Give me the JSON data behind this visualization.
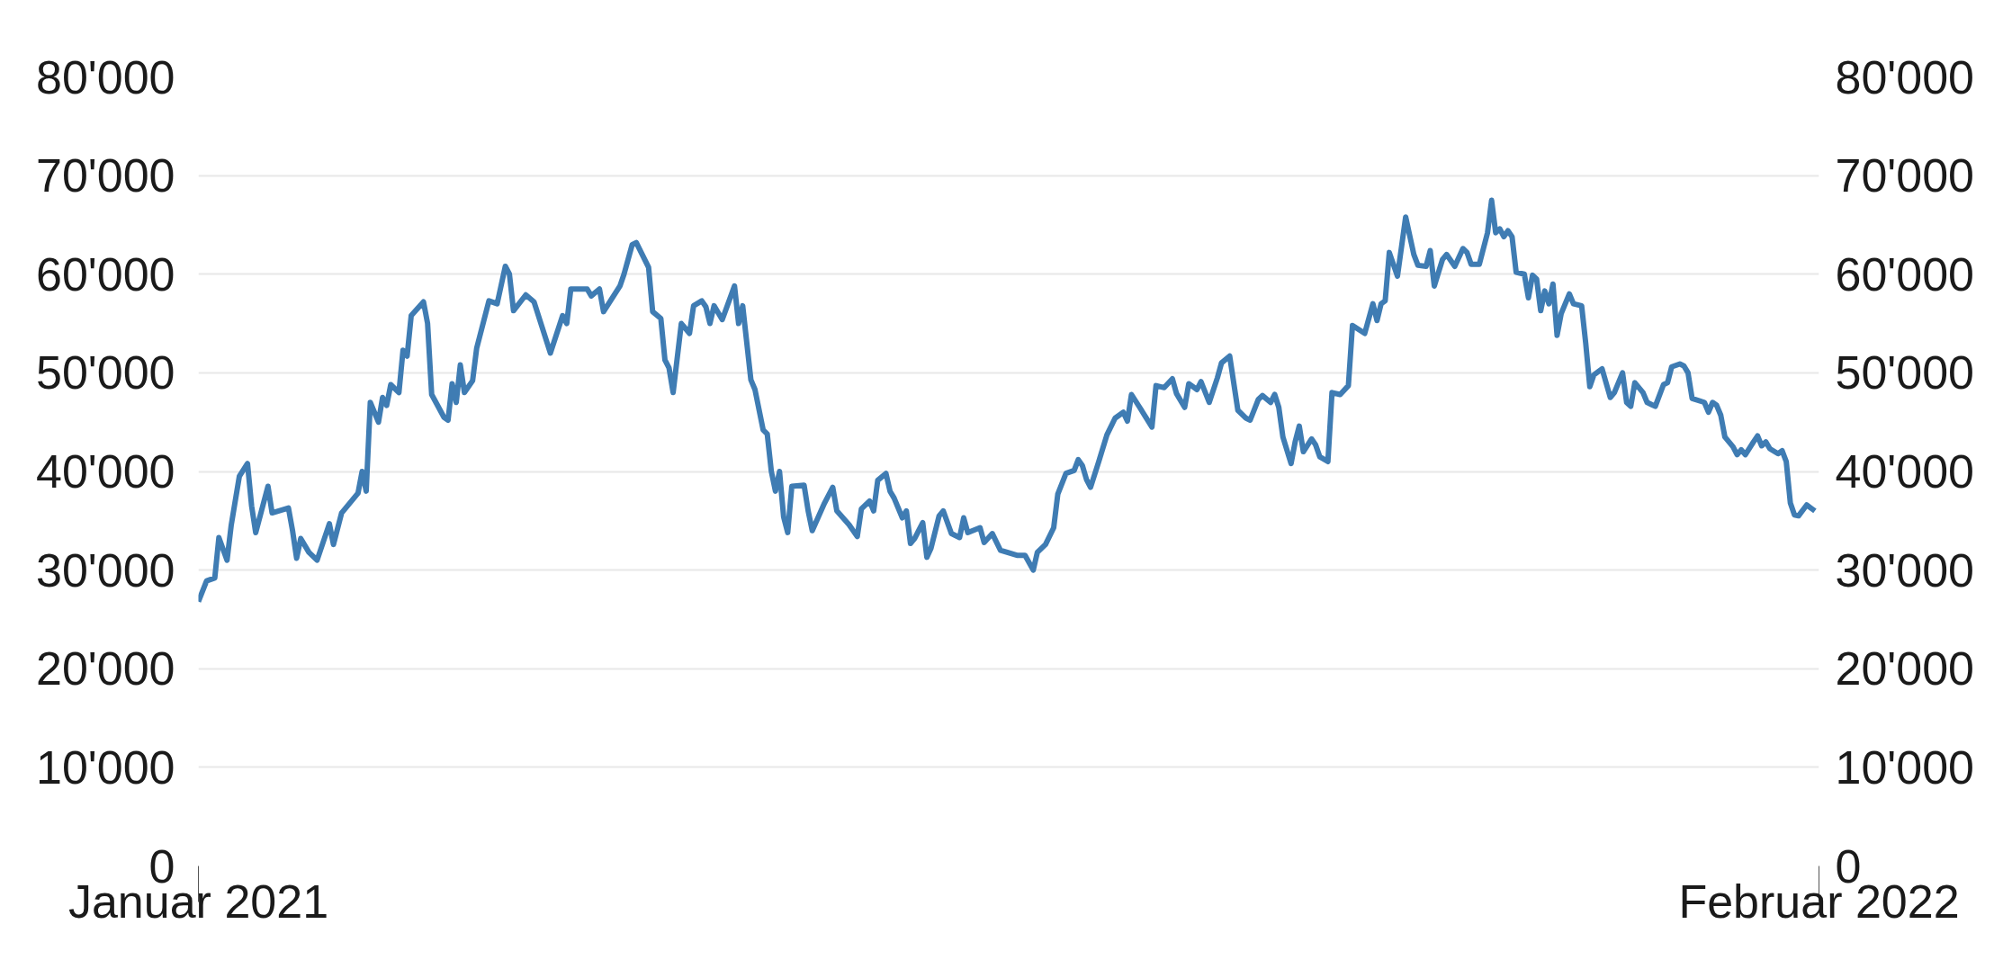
{
  "chart_data": {
    "type": "line",
    "x": [
      "2021-01-01",
      "2021-01-03",
      "2021-01-05",
      "2021-01-06",
      "2021-01-08",
      "2021-01-09",
      "2021-01-11",
      "2021-01-13",
      "2021-01-14",
      "2021-01-15",
      "2021-01-18",
      "2021-01-19",
      "2021-01-23",
      "2021-01-24",
      "2021-01-25",
      "2021-01-26",
      "2021-01-28",
      "2021-01-30",
      "2021-02-02",
      "2021-02-03",
      "2021-02-05",
      "2021-02-09",
      "2021-02-10",
      "2021-02-11",
      "2021-02-12",
      "2021-02-14",
      "2021-02-15",
      "2021-02-16",
      "2021-02-17",
      "2021-02-19",
      "2021-02-20",
      "2021-02-21",
      "2021-02-22",
      "2021-02-25",
      "2021-02-26",
      "2021-02-27",
      "2021-03-02",
      "2021-03-03",
      "2021-03-04",
      "2021-03-05",
      "2021-03-06",
      "2021-03-07",
      "2021-03-09",
      "2021-03-10",
      "2021-03-13",
      "2021-03-15",
      "2021-03-17",
      "2021-03-18",
      "2021-03-19",
      "2021-03-22",
      "2021-03-24",
      "2021-03-26",
      "2021-03-28",
      "2021-03-31",
      "2021-04-01",
      "2021-04-02",
      "2021-04-06",
      "2021-04-07",
      "2021-04-09",
      "2021-04-10",
      "2021-04-14",
      "2021-04-15",
      "2021-04-17",
      "2021-04-18",
      "2021-04-21",
      "2021-04-22",
      "2021-04-24",
      "2021-04-25",
      "2021-04-26",
      "2021-04-27",
      "2021-04-29",
      "2021-05-01",
      "2021-05-02",
      "2021-05-04",
      "2021-05-05",
      "2021-05-06",
      "2021-05-07",
      "2021-05-09",
      "2021-05-12",
      "2021-05-13",
      "2021-05-14",
      "2021-05-16",
      "2021-05-17",
      "2021-05-19",
      "2021-05-20",
      "2021-05-21",
      "2021-05-22",
      "2021-05-23",
      "2021-05-24",
      "2021-05-25",
      "2021-05-26",
      "2021-05-29",
      "2021-05-30",
      "2021-05-31",
      "2021-06-03",
      "2021-06-05",
      "2021-06-06",
      "2021-06-09",
      "2021-06-11",
      "2021-06-12",
      "2021-06-14",
      "2021-06-15",
      "2021-06-16",
      "2021-06-18",
      "2021-06-19",
      "2021-06-20",
      "2021-06-22",
      "2021-06-23",
      "2021-06-24",
      "2021-06-25",
      "2021-06-27",
      "2021-06-28",
      "2021-06-29",
      "2021-07-01",
      "2021-07-02",
      "2021-07-04",
      "2021-07-06",
      "2021-07-07",
      "2021-07-08",
      "2021-07-11",
      "2021-07-12",
      "2021-07-14",
      "2021-07-16",
      "2021-07-20",
      "2021-07-22",
      "2021-07-24",
      "2021-07-25",
      "2021-07-27",
      "2021-07-29",
      "2021-07-30",
      "2021-08-01",
      "2021-08-03",
      "2021-08-04",
      "2021-08-05",
      "2021-08-06",
      "2021-08-07",
      "2021-08-09",
      "2021-08-11",
      "2021-08-13",
      "2021-08-15",
      "2021-08-16",
      "2021-08-17",
      "2021-08-19",
      "2021-08-22",
      "2021-08-23",
      "2021-08-25",
      "2021-08-27",
      "2021-08-28",
      "2021-08-30",
      "2021-08-31",
      "2021-09-02",
      "2021-09-03",
      "2021-09-05",
      "2021-09-07",
      "2021-09-08",
      "2021-09-10",
      "2021-09-12",
      "2021-09-14",
      "2021-09-15",
      "2021-09-17",
      "2021-09-18",
      "2021-09-20",
      "2021-09-21",
      "2021-09-22",
      "2021-09-23",
      "2021-09-25",
      "2021-09-26",
      "2021-09-27",
      "2021-09-28",
      "2021-09-30",
      "2021-10-01",
      "2021-10-02",
      "2021-10-04",
      "2021-10-05",
      "2021-10-07",
      "2021-10-09",
      "2021-10-10",
      "2021-10-13",
      "2021-10-15",
      "2021-10-16",
      "2021-10-17",
      "2021-10-18",
      "2021-10-19",
      "2021-10-21",
      "2021-10-23",
      "2021-10-25",
      "2021-10-26",
      "2021-10-28",
      "2021-10-29",
      "2021-10-30",
      "2021-11-01",
      "2021-11-02",
      "2021-11-04",
      "2021-11-06",
      "2021-11-07",
      "2021-11-08",
      "2021-11-10",
      "2021-11-12",
      "2021-11-13",
      "2021-11-14",
      "2021-11-15",
      "2021-11-16",
      "2021-11-17",
      "2021-11-18",
      "2021-11-19",
      "2021-11-21",
      "2021-11-22",
      "2021-11-23",
      "2021-11-24",
      "2021-11-25",
      "2021-11-26",
      "2021-11-27",
      "2021-11-28",
      "2021-11-29",
      "2021-11-30",
      "2021-12-02",
      "2021-12-03",
      "2021-12-05",
      "2021-12-06",
      "2021-12-07",
      "2021-12-08",
      "2021-12-10",
      "2021-12-12",
      "2021-12-13",
      "2021-12-15",
      "2021-12-16",
      "2021-12-17",
      "2021-12-18",
      "2021-12-20",
      "2021-12-21",
      "2021-12-22",
      "2021-12-23",
      "2021-12-25",
      "2021-12-26",
      "2021-12-27",
      "2021-12-29",
      "2021-12-30",
      "2021-12-31",
      "2022-01-01",
      "2022-01-04",
      "2022-01-05",
      "2022-01-06",
      "2022-01-07",
      "2022-01-08",
      "2022-01-09",
      "2022-01-11",
      "2022-01-12",
      "2022-01-13",
      "2022-01-14",
      "2022-01-16",
      "2022-01-17",
      "2022-01-18",
      "2022-01-19",
      "2022-01-20",
      "2022-01-22",
      "2022-01-23",
      "2022-01-24",
      "2022-01-25",
      "2022-01-26",
      "2022-01-27",
      "2022-01-29",
      "2022-01-30",
      "2022-01-31"
    ],
    "series": [
      {
        "color": "#3f7cb3",
        "values": [
          26800,
          28900,
          29200,
          33300,
          31000,
          34500,
          39500,
          40800,
          36500,
          33800,
          38500,
          35800,
          36300,
          34000,
          31200,
          33200,
          31800,
          31000,
          34700,
          32600,
          35800,
          37800,
          40000,
          38000,
          47000,
          45000,
          47500,
          46700,
          48800,
          48000,
          52300,
          51700,
          55800,
          57200,
          55000,
          47800,
          45500,
          45200,
          48900,
          47000,
          50800,
          48000,
          49200,
          52500,
          57300,
          57000,
          60800,
          60000,
          56300,
          57900,
          57200,
          54600,
          52000,
          55800,
          55000,
          58500,
          58500,
          57800,
          58500,
          56200,
          58800,
          60000,
          63000,
          63200,
          60700,
          56200,
          55500,
          51300,
          50500,
          48000,
          55000,
          54000,
          56800,
          57300,
          56700,
          55000,
          56800,
          55400,
          58800,
          55000,
          56800,
          49300,
          48300,
          44200,
          43800,
          40000,
          38000,
          40000,
          35400,
          33800,
          38500,
          38600,
          36000,
          34000,
          36800,
          38400,
          36000,
          34600,
          33400,
          36200,
          37000,
          36000,
          39100,
          39800,
          38000,
          37300,
          35300,
          36000,
          32700,
          33200,
          34800,
          31300,
          32200,
          35500,
          36000,
          33700,
          33300,
          35300,
          33800,
          34300,
          32800,
          33700,
          32000,
          31500,
          31500,
          30000,
          31800,
          32600,
          34300,
          37700,
          39800,
          40100,
          41200,
          40600,
          39200,
          38400,
          41000,
          43700,
          45400,
          46000,
          45100,
          47800,
          46500,
          44500,
          48700,
          48500,
          49400,
          47900,
          46500,
          48900,
          48300,
          49100,
          47000,
          49500,
          51000,
          51700,
          46200,
          45400,
          45200,
          47300,
          47700,
          47000,
          47800,
          46500,
          43500,
          40800,
          43000,
          44600,
          42000,
          43300,
          42700,
          41500,
          41000,
          48000,
          47800,
          48700,
          54800,
          54000,
          57000,
          55300,
          57000,
          57300,
          62200,
          59800,
          65800,
          62000,
          60900,
          60800,
          62400,
          58800,
          61500,
          62000,
          60800,
          62600,
          62200,
          61000,
          61000,
          64200,
          67500,
          64200,
          64600,
          63800,
          64400,
          63800,
          60200,
          60000,
          57600,
          59900,
          59500,
          56300,
          58300,
          57000,
          59000,
          53800,
          56000,
          58000,
          57000,
          56800,
          53000,
          48600,
          49800,
          50400,
          47500,
          48000,
          50000,
          47000,
          46600,
          49000,
          48000,
          47000,
          46800,
          46600,
          48800,
          49000,
          50600,
          50900,
          50700,
          50000,
          47400,
          47000,
          46000,
          47000,
          46700,
          45700,
          43500,
          42500,
          41700,
          42200,
          41700,
          43000,
          43600,
          42600,
          43000,
          42300,
          41800,
          42100,
          41000,
          36800,
          35600,
          35500,
          36600,
          36300,
          36000
        ]
      }
    ],
    "xlim": [
      "2021-01-01",
      "2022-02-01"
    ],
    "xticks": [
      {
        "value": "2021-01-01",
        "label": "Januar 2021"
      },
      {
        "value": "2022-02-01",
        "label": "Februar 2022"
      }
    ],
    "ylim": [
      0,
      80000
    ],
    "yticks": [
      {
        "value": 0,
        "label": "0"
      },
      {
        "value": 10000,
        "label": "10'000"
      },
      {
        "value": 20000,
        "label": "20'000"
      },
      {
        "value": 30000,
        "label": "30'000"
      },
      {
        "value": 40000,
        "label": "40'000"
      },
      {
        "value": 50000,
        "label": "50'000"
      },
      {
        "value": 60000,
        "label": "60'000"
      },
      {
        "value": 70000,
        "label": "70'000"
      },
      {
        "value": 80000,
        "label": "80'000"
      }
    ],
    "y2lim": [
      0,
      80000
    ],
    "y2ticks": [
      {
        "value": 0,
        "label": "0"
      },
      {
        "value": 10000,
        "label": "10'000"
      },
      {
        "value": 20000,
        "label": "20'000"
      },
      {
        "value": 30000,
        "label": "30'000"
      },
      {
        "value": 40000,
        "label": "40'000"
      },
      {
        "value": 50000,
        "label": "50'000"
      },
      {
        "value": 60000,
        "label": "60'000"
      },
      {
        "value": 70000,
        "label": "70'000"
      },
      {
        "value": 80000,
        "label": "80'000"
      }
    ],
    "grid": "y",
    "line_style": "solid",
    "marker": "none"
  }
}
